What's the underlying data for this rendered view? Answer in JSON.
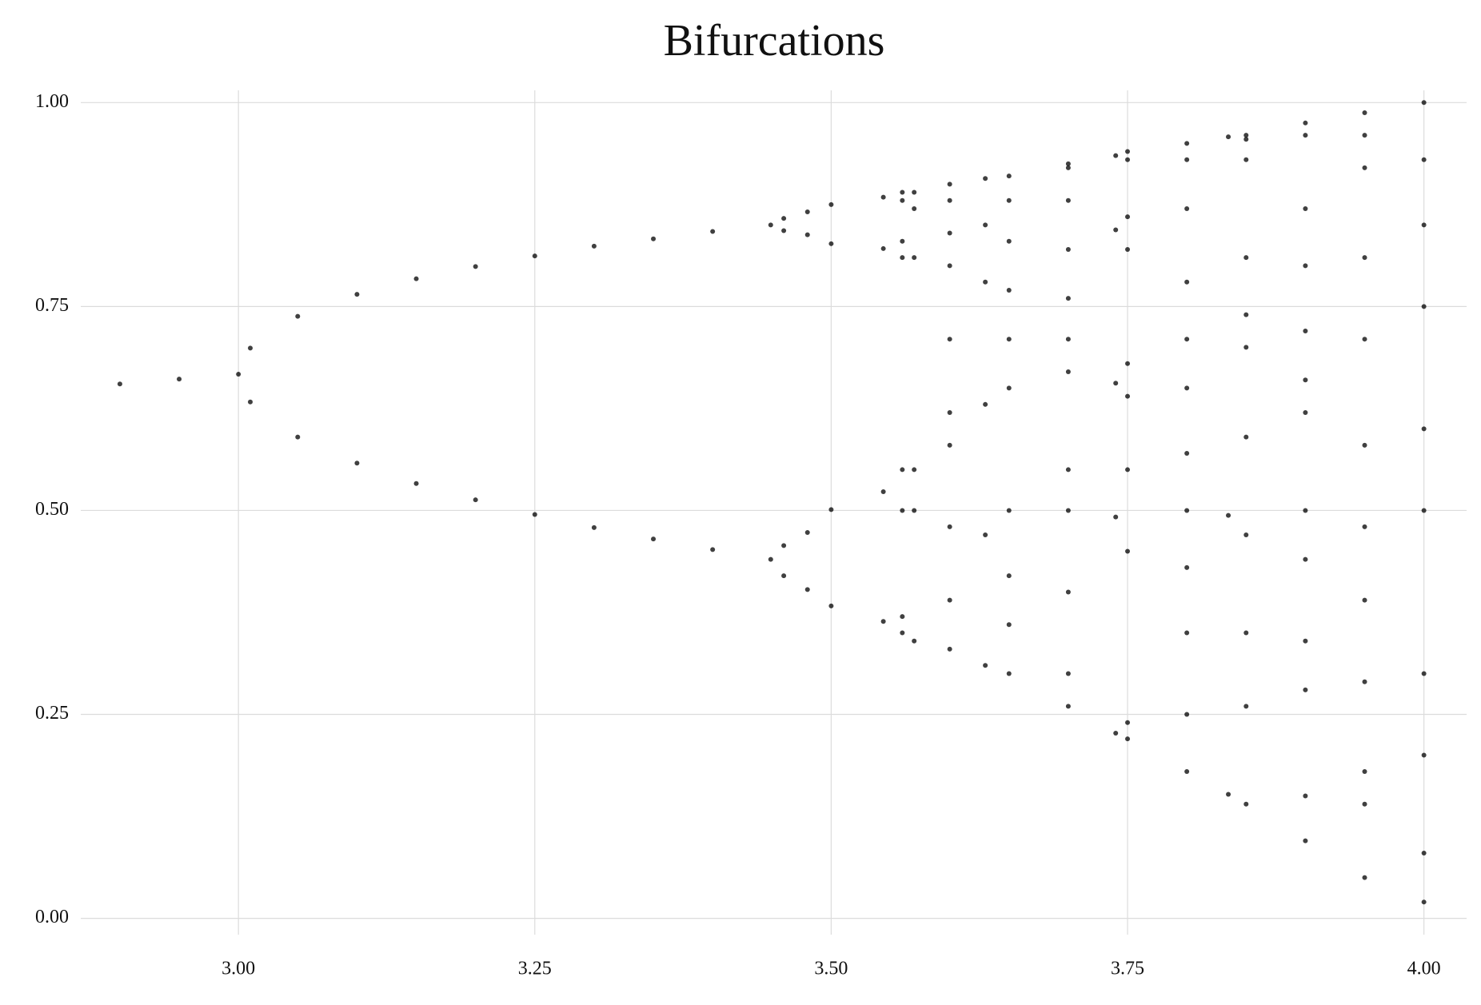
{
  "chart_data": {
    "type": "scatter",
    "title": "Bifurcations",
    "color": "#000000",
    "grid": true,
    "xlim": [
      2.867,
      4.036
    ],
    "ylim": [
      -0.02,
      1.015
    ],
    "xticks": [
      {
        "value": 3.0,
        "label": "3.00"
      },
      {
        "value": 3.25,
        "label": "3.25"
      },
      {
        "value": 3.5,
        "label": "3.50"
      },
      {
        "value": 3.75,
        "label": "3.75"
      },
      {
        "value": 4.0,
        "label": "4.00"
      }
    ],
    "yticks": [
      {
        "value": 0,
        "label": "0.00"
      },
      {
        "value": 0.25,
        "label": "0.25"
      },
      {
        "value": 0.5,
        "label": "0.50"
      },
      {
        "value": 0.75,
        "label": "0.75"
      },
      {
        "value": 1.0,
        "label": "1.00"
      }
    ],
    "x": [
      2.9,
      2.95,
      3.0,
      3.01,
      3.01,
      3.05,
      3.05,
      3.1,
      3.1,
      3.15,
      3.15,
      3.2,
      3.2,
      3.25,
      3.25,
      3.3,
      3.3,
      3.35,
      3.35,
      3.4,
      3.4,
      3.449,
      3.449,
      3.46,
      3.46,
      3.46,
      3.46,
      3.48,
      3.48,
      3.48,
      3.48,
      3.5,
      3.5,
      3.5,
      3.5,
      3.544,
      3.544,
      3.544,
      3.544,
      3.56,
      3.56,
      3.56,
      3.56,
      3.56,
      3.56,
      3.56,
      3.56,
      3.57,
      3.57,
      3.57,
      3.57,
      3.57,
      3.57,
      3.6,
      3.6,
      3.6,
      3.6,
      3.6,
      3.6,
      3.6,
      3.6,
      3.6,
      3.6,
      3.63,
      3.63,
      3.63,
      3.63,
      3.63,
      3.63,
      3.65,
      3.65,
      3.65,
      3.65,
      3.65,
      3.65,
      3.65,
      3.65,
      3.65,
      3.65,
      3.7,
      3.7,
      3.7,
      3.7,
      3.7,
      3.7,
      3.7,
      3.7,
      3.7,
      3.7,
      3.7,
      3.7,
      3.74,
      3.74,
      3.74,
      3.74,
      3.74,
      3.75,
      3.75,
      3.75,
      3.75,
      3.75,
      3.75,
      3.75,
      3.75,
      3.75,
      3.75,
      3.8,
      3.8,
      3.8,
      3.8,
      3.8,
      3.8,
      3.8,
      3.8,
      3.8,
      3.8,
      3.8,
      3.8,
      3.835,
      3.835,
      3.835,
      3.85,
      3.85,
      3.85,
      3.85,
      3.85,
      3.85,
      3.85,
      3.85,
      3.85,
      3.85,
      3.85,
      3.9,
      3.9,
      3.9,
      3.9,
      3.9,
      3.9,
      3.9,
      3.9,
      3.9,
      3.9,
      3.9,
      3.9,
      3.9,
      3.95,
      3.95,
      3.95,
      3.95,
      3.95,
      3.95,
      3.95,
      3.95,
      3.95,
      3.95,
      3.95,
      3.95,
      4.0,
      4.0,
      4.0,
      4.0,
      4.0,
      4.0,
      4.0,
      4.0,
      4.0,
      4.0
    ],
    "y": [
      0.655,
      0.661,
      0.667,
      0.699,
      0.633,
      0.738,
      0.59,
      0.765,
      0.558,
      0.784,
      0.533,
      0.799,
      0.513,
      0.812,
      0.495,
      0.824,
      0.479,
      0.833,
      0.465,
      0.842,
      0.452,
      0.85,
      0.44,
      0.858,
      0.42,
      0.843,
      0.457,
      0.866,
      0.403,
      0.838,
      0.473,
      0.875,
      0.383,
      0.827,
      0.501,
      0.884,
      0.364,
      0.821,
      0.523,
      0.89,
      0.35,
      0.81,
      0.55,
      0.88,
      0.37,
      0.83,
      0.5,
      0.89,
      0.34,
      0.81,
      0.55,
      0.5,
      0.87,
      0.9,
      0.33,
      0.8,
      0.58,
      0.88,
      0.39,
      0.84,
      0.48,
      0.62,
      0.71,
      0.907,
      0.31,
      0.78,
      0.63,
      0.85,
      0.47,
      0.91,
      0.3,
      0.77,
      0.65,
      0.83,
      0.5,
      0.42,
      0.88,
      0.36,
      0.71,
      0.925,
      0.26,
      0.71,
      0.76,
      0.67,
      0.82,
      0.55,
      0.92,
      0.3,
      0.4,
      0.88,
      0.5,
      0.935,
      0.227,
      0.656,
      0.844,
      0.492,
      0.94,
      0.22,
      0.64,
      0.86,
      0.45,
      0.93,
      0.24,
      0.68,
      0.82,
      0.55,
      0.95,
      0.18,
      0.57,
      0.93,
      0.25,
      0.71,
      0.78,
      0.65,
      0.87,
      0.43,
      0.35,
      0.5,
      0.958,
      0.152,
      0.494,
      0.96,
      0.14,
      0.47,
      0.955,
      0.26,
      0.74,
      0.7,
      0.81,
      0.59,
      0.93,
      0.35,
      0.975,
      0.095,
      0.34,
      0.87,
      0.44,
      0.96,
      0.15,
      0.5,
      0.66,
      0.8,
      0.62,
      0.28,
      0.72,
      0.9875,
      0.05,
      0.18,
      0.58,
      0.96,
      0.14,
      0.48,
      0.39,
      0.92,
      0.29,
      0.81,
      0.71,
      1.0,
      0.02,
      0.08,
      0.3,
      0.5,
      0.75,
      0.93,
      0.6,
      0.2,
      0.85
    ]
  }
}
